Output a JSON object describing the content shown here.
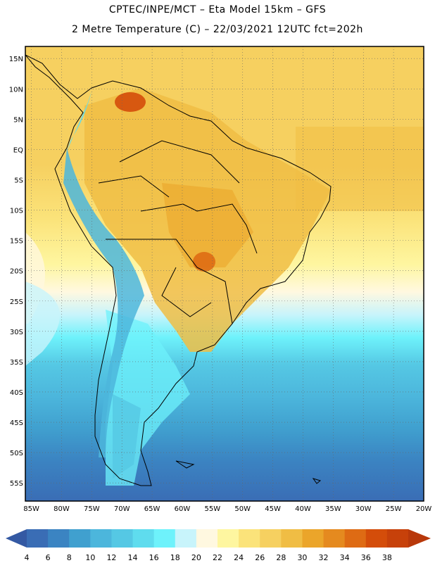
{
  "header": {
    "line1": "CPTEC/INPE/MCT –  Eta Model 15km – GFS",
    "line2": "2 Metre Temperature (C) – 22/03/2021 12UTC fct=202h"
  },
  "map": {
    "lat_ticks": [
      {
        "lat": 15,
        "label": "15N"
      },
      {
        "lat": 10,
        "label": "10N"
      },
      {
        "lat": 5,
        "label": "5N"
      },
      {
        "lat": 0,
        "label": "EQ"
      },
      {
        "lat": -5,
        "label": "5S"
      },
      {
        "lat": -10,
        "label": "10S"
      },
      {
        "lat": -15,
        "label": "15S"
      },
      {
        "lat": -20,
        "label": "20S"
      },
      {
        "lat": -25,
        "label": "25S"
      },
      {
        "lat": -30,
        "label": "30S"
      },
      {
        "lat": -35,
        "label": "35S"
      },
      {
        "lat": -40,
        "label": "40S"
      },
      {
        "lat": -45,
        "label": "45S"
      },
      {
        "lat": -50,
        "label": "50S"
      },
      {
        "lat": -55,
        "label": "55S"
      }
    ],
    "lon_ticks": [
      {
        "lon": -85,
        "label": "85W"
      },
      {
        "lon": -80,
        "label": "80W"
      },
      {
        "lon": -75,
        "label": "75W"
      },
      {
        "lon": -70,
        "label": "70W"
      },
      {
        "lon": -65,
        "label": "65W"
      },
      {
        "lon": -60,
        "label": "60W"
      },
      {
        "lon": -55,
        "label": "55W"
      },
      {
        "lon": -50,
        "label": "50W"
      },
      {
        "lon": -45,
        "label": "45W"
      },
      {
        "lon": -40,
        "label": "40W"
      },
      {
        "lon": -35,
        "label": "35W"
      },
      {
        "lon": -30,
        "label": "30W"
      },
      {
        "lon": -25,
        "label": "25W"
      },
      {
        "lon": -20,
        "label": "20W"
      }
    ],
    "extent": {
      "lon_min": -86,
      "lon_max": -20,
      "lat_min": -58,
      "lat_max": 17
    }
  },
  "colorbar": {
    "labels": [
      "4",
      "6",
      "8",
      "10",
      "12",
      "14",
      "16",
      "18",
      "20",
      "22",
      "24",
      "26",
      "28",
      "30",
      "32",
      "34",
      "36",
      "38"
    ],
    "colors": [
      "#3a6db5",
      "#3b84c2",
      "#40a0cf",
      "#4cb6dc",
      "#55c8e4",
      "#5fdcee",
      "#6ef2fb",
      "#c8f4fb",
      "#fff8e0",
      "#fef6a0",
      "#fbe37a",
      "#f6d060",
      "#f0bd44",
      "#eba52a",
      "#e58a1f",
      "#de6b14",
      "#d44d0a",
      "#c7410a"
    ],
    "under_color": "#3459a3",
    "over_color": "#b8380a"
  }
}
